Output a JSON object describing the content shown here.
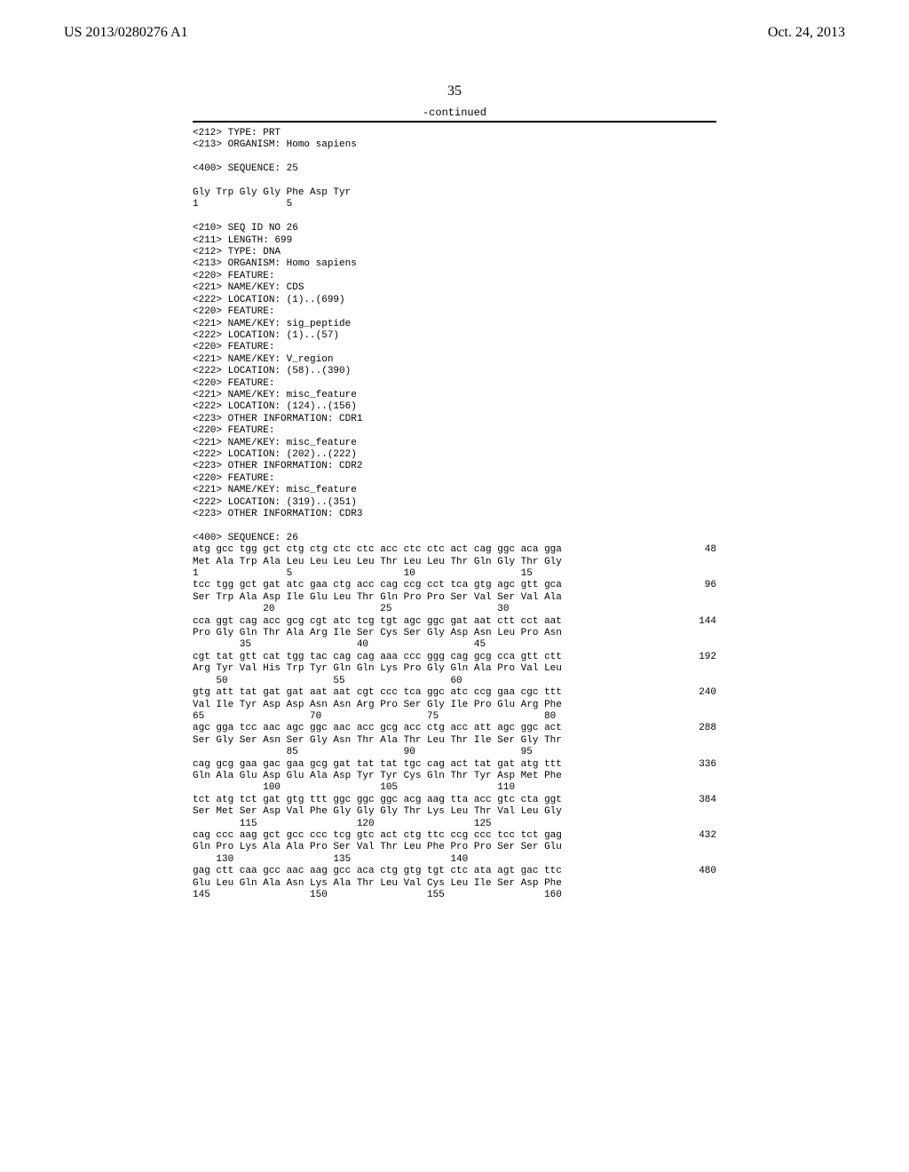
{
  "header": {
    "left": "US 2013/0280276 A1",
    "right": "Oct. 24, 2013"
  },
  "page_number": "35",
  "continued": "-continued",
  "meta_block_1": "<212> TYPE: PRT\n<213> ORGANISM: Homo sapiens\n\n<400> SEQUENCE: 25\n\nGly Trp Gly Gly Phe Asp Tyr\n1               5\n\n",
  "meta_block_2": "<210> SEQ ID NO 26\n<211> LENGTH: 699\n<212> TYPE: DNA\n<213> ORGANISM: Homo sapiens\n<220> FEATURE:\n<221> NAME/KEY: CDS\n<222> LOCATION: (1)..(699)\n<220> FEATURE:\n<221> NAME/KEY: sig_peptide\n<222> LOCATION: (1)..(57)\n<220> FEATURE:\n<221> NAME/KEY: V_region\n<222> LOCATION: (58)..(390)\n<220> FEATURE:\n<221> NAME/KEY: misc_feature\n<222> LOCATION: (124)..(156)\n<223> OTHER INFORMATION: CDR1\n<220> FEATURE:\n<221> NAME/KEY: misc_feature\n<222> LOCATION: (202)..(222)\n<223> OTHER INFORMATION: CDR2\n<220> FEATURE:\n<221> NAME/KEY: misc_feature\n<222> LOCATION: (319)..(351)\n<223> OTHER INFORMATION: CDR3\n\n<400> SEQUENCE: 26\n",
  "rows": [
    {
      "l": "atg gcc tgg gct ctg ctg ctc ctc acc ctc ctc act cag ggc aca gga",
      "r": "48"
    },
    {
      "l": "Met Ala Trp Ala Leu Leu Leu Leu Thr Leu Leu Thr Gln Gly Thr Gly",
      "r": ""
    },
    {
      "l": "1               5                   10                  15",
      "r": ""
    },
    {
      "l": "",
      "r": ""
    },
    {
      "l": "tcc tgg gct gat atc gaa ctg acc cag ccg cct tca gtg agc gtt gca",
      "r": "96"
    },
    {
      "l": "Ser Trp Ala Asp Ile Glu Leu Thr Gln Pro Pro Ser Val Ser Val Ala",
      "r": ""
    },
    {
      "l": "            20                  25                  30",
      "r": ""
    },
    {
      "l": "",
      "r": ""
    },
    {
      "l": "cca ggt cag acc gcg cgt atc tcg tgt agc ggc gat aat ctt cct aat",
      "r": "144"
    },
    {
      "l": "Pro Gly Gln Thr Ala Arg Ile Ser Cys Ser Gly Asp Asn Leu Pro Asn",
      "r": ""
    },
    {
      "l": "        35                  40                  45",
      "r": ""
    },
    {
      "l": "",
      "r": ""
    },
    {
      "l": "cgt tat gtt cat tgg tac cag cag aaa ccc ggg cag gcg cca gtt ctt",
      "r": "192"
    },
    {
      "l": "Arg Tyr Val His Trp Tyr Gln Gln Lys Pro Gly Gln Ala Pro Val Leu",
      "r": ""
    },
    {
      "l": "    50                  55                  60",
      "r": ""
    },
    {
      "l": "",
      "r": ""
    },
    {
      "l": "gtg att tat gat gat aat aat cgt ccc tca ggc atc ccg gaa cgc ttt",
      "r": "240"
    },
    {
      "l": "Val Ile Tyr Asp Asp Asn Asn Arg Pro Ser Gly Ile Pro Glu Arg Phe",
      "r": ""
    },
    {
      "l": "65                  70                  75                  80",
      "r": ""
    },
    {
      "l": "",
      "r": ""
    },
    {
      "l": "agc gga tcc aac agc ggc aac acc gcg acc ctg acc att agc ggc act",
      "r": "288"
    },
    {
      "l": "Ser Gly Ser Asn Ser Gly Asn Thr Ala Thr Leu Thr Ile Ser Gly Thr",
      "r": ""
    },
    {
      "l": "                85                  90                  95",
      "r": ""
    },
    {
      "l": "",
      "r": ""
    },
    {
      "l": "cag gcg gaa gac gaa gcg gat tat tat tgc cag act tat gat atg ttt",
      "r": "336"
    },
    {
      "l": "Gln Ala Glu Asp Glu Ala Asp Tyr Tyr Cys Gln Thr Tyr Asp Met Phe",
      "r": ""
    },
    {
      "l": "            100                 105                 110",
      "r": ""
    },
    {
      "l": "",
      "r": ""
    },
    {
      "l": "tct atg tct gat gtg ttt ggc ggc ggc acg aag tta acc gtc cta ggt",
      "r": "384"
    },
    {
      "l": "Ser Met Ser Asp Val Phe Gly Gly Gly Thr Lys Leu Thr Val Leu Gly",
      "r": ""
    },
    {
      "l": "        115                 120                 125",
      "r": ""
    },
    {
      "l": "",
      "r": ""
    },
    {
      "l": "cag ccc aag gct gcc ccc tcg gtc act ctg ttc ccg ccc tcc tct gag",
      "r": "432"
    },
    {
      "l": "Gln Pro Lys Ala Ala Pro Ser Val Thr Leu Phe Pro Pro Ser Ser Glu",
      "r": ""
    },
    {
      "l": "    130                 135                 140",
      "r": ""
    },
    {
      "l": "",
      "r": ""
    },
    {
      "l": "gag ctt caa gcc aac aag gcc aca ctg gtg tgt ctc ata agt gac ttc",
      "r": "480"
    },
    {
      "l": "Glu Leu Gln Ala Asn Lys Ala Thr Leu Val Cys Leu Ile Ser Asp Phe",
      "r": ""
    },
    {
      "l": "145                 150                 155                 160",
      "r": ""
    }
  ]
}
